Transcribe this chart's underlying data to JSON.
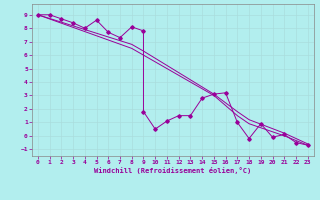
{
  "xlabel": "Windchill (Refroidissement éolien,°C)",
  "ylabel": "",
  "bg_color": "#b2eeee",
  "grid_color": "#aadddd",
  "line_color": "#990099",
  "spine_color": "#888888",
  "xlim": [
    -0.5,
    23.5
  ],
  "ylim": [
    -1.5,
    9.8
  ],
  "xticks": [
    0,
    1,
    2,
    3,
    4,
    5,
    6,
    7,
    8,
    9,
    10,
    11,
    12,
    13,
    14,
    15,
    16,
    17,
    18,
    19,
    20,
    21,
    22,
    23
  ],
  "yticks": [
    -1,
    0,
    1,
    2,
    3,
    4,
    5,
    6,
    7,
    8,
    9
  ],
  "series": [
    [
      0,
      9.0
    ],
    [
      1,
      9.0
    ],
    [
      2,
      8.7
    ],
    [
      3,
      8.4
    ],
    [
      4,
      8.0
    ],
    [
      5,
      8.6
    ],
    [
      6,
      7.7
    ],
    [
      7,
      7.3
    ],
    [
      8,
      8.1
    ],
    [
      9,
      7.8
    ],
    [
      9,
      1.8
    ],
    [
      10,
      0.5
    ],
    [
      11,
      1.1
    ],
    [
      12,
      1.5
    ],
    [
      13,
      1.5
    ],
    [
      14,
      2.8
    ],
    [
      15,
      3.1
    ],
    [
      16,
      3.2
    ],
    [
      17,
      1.0
    ],
    [
      18,
      -0.2
    ],
    [
      19,
      0.9
    ],
    [
      20,
      -0.1
    ],
    [
      21,
      0.1
    ],
    [
      22,
      -0.5
    ],
    [
      23,
      -0.7
    ]
  ],
  "line2": [
    [
      0,
      9.0
    ],
    [
      8,
      6.8
    ],
    [
      9,
      6.3
    ],
    [
      15,
      3.1
    ],
    [
      17,
      1.8
    ],
    [
      18,
      1.2
    ],
    [
      21,
      0.2
    ],
    [
      23,
      -0.6
    ]
  ],
  "line3": [
    [
      0,
      9.0
    ],
    [
      8,
      6.5
    ],
    [
      9,
      6.0
    ],
    [
      15,
      3.0
    ],
    [
      17,
      1.5
    ],
    [
      18,
      0.9
    ],
    [
      21,
      0.0
    ],
    [
      23,
      -0.7
    ]
  ]
}
